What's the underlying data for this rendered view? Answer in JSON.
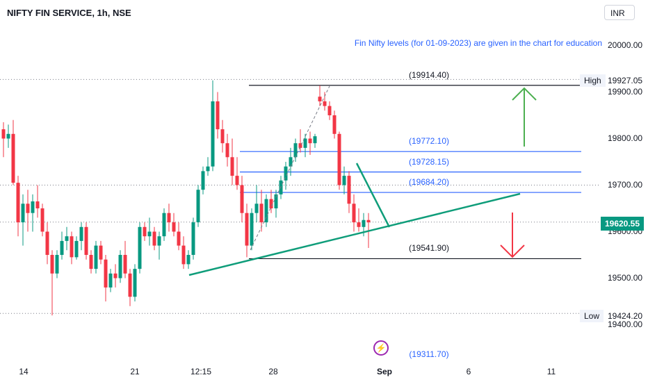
{
  "header": {
    "title": "NIFTY FIN SERVICE, 1h, NSE",
    "currency": "INR",
    "note": "Fin Nifty levels (for 01-09-2023) are given in the chart for education"
  },
  "colors": {
    "up": "#089981",
    "down": "#f23645",
    "blue_level": "#2962ff",
    "trendline": "#0f9d7a",
    "dotted": "#787b86"
  },
  "price_box": "19620.55",
  "high_label": {
    "tag": "High",
    "value": "19927.05"
  },
  "low_label": {
    "tag": "Low",
    "value": "19424.20"
  },
  "event_icon": "lightning-icon",
  "event_level": "(19311.70)",
  "chart_data": {
    "type": "candlestick",
    "title": "NIFTY FIN SERVICE, 1h, NSE",
    "y_range": [
      19300,
      20050
    ],
    "y_ticks": [
      "20000.00",
      "19900.00",
      "19800.00",
      "19700.00",
      "19600.00",
      "19500.00",
      "19400.00"
    ],
    "x_ticks": [
      "14",
      "21",
      "12:15",
      "28",
      "Sep",
      "6",
      "11"
    ],
    "levels": [
      {
        "label": "(19914.40)",
        "value": 19914.4,
        "color": "black"
      },
      {
        "label": "(19772.10)",
        "value": 19772.1,
        "color": "blue"
      },
      {
        "label": "(19728.15)",
        "value": 19728.15,
        "color": "blue"
      },
      {
        "label": "(19684.20)",
        "value": 19684.2,
        "color": "blue"
      },
      {
        "label": "(19541.90)",
        "value": 19541.9,
        "color": "black"
      }
    ],
    "dotted_lines": [
      19927.05,
      19700,
      19620.55,
      19424.2
    ],
    "candles": [
      [
        19820,
        19835,
        19760,
        19800
      ],
      [
        19800,
        19830,
        19780,
        19810
      ],
      [
        19810,
        19840,
        19700,
        19705
      ],
      [
        19705,
        19720,
        19590,
        19620
      ],
      [
        19620,
        19680,
        19570,
        19660
      ],
      [
        19660,
        19690,
        19600,
        19640
      ],
      [
        19640,
        19680,
        19600,
        19665
      ],
      [
        19665,
        19700,
        19630,
        19650
      ],
      [
        19650,
        19660,
        19590,
        19600
      ],
      [
        19600,
        19620,
        19530,
        19550
      ],
      [
        19550,
        19560,
        19420,
        19510
      ],
      [
        19510,
        19560,
        19500,
        19550
      ],
      [
        19550,
        19600,
        19540,
        19580
      ],
      [
        19580,
        19610,
        19560,
        19590
      ],
      [
        19590,
        19600,
        19530,
        19545
      ],
      [
        19545,
        19590,
        19540,
        19580
      ],
      [
        19580,
        19620,
        19560,
        19610
      ],
      [
        19610,
        19620,
        19540,
        19550
      ],
      [
        19550,
        19560,
        19510,
        19520
      ],
      [
        19520,
        19580,
        19510,
        19570
      ],
      [
        19570,
        19580,
        19530,
        19540
      ],
      [
        19540,
        19550,
        19450,
        19480
      ],
      [
        19480,
        19520,
        19470,
        19510
      ],
      [
        19510,
        19530,
        19480,
        19500
      ],
      [
        19500,
        19560,
        19490,
        19550
      ],
      [
        19550,
        19580,
        19500,
        19510
      ],
      [
        19510,
        19520,
        19440,
        19460
      ],
      [
        19460,
        19530,
        19450,
        19520
      ],
      [
        19520,
        19620,
        19510,
        19610
      ],
      [
        19610,
        19620,
        19580,
        19590
      ],
      [
        19590,
        19630,
        19570,
        19600
      ],
      [
        19600,
        19610,
        19560,
        19570
      ],
      [
        19570,
        19600,
        19540,
        19590
      ],
      [
        19590,
        19650,
        19580,
        19640
      ],
      [
        19640,
        19660,
        19600,
        19620
      ],
      [
        19620,
        19640,
        19590,
        19600
      ],
      [
        19600,
        19620,
        19560,
        19570
      ],
      [
        19570,
        19590,
        19520,
        19530
      ],
      [
        19530,
        19560,
        19520,
        19550
      ],
      [
        19550,
        19630,
        19540,
        19620
      ],
      [
        19620,
        19700,
        19610,
        19690
      ],
      [
        19690,
        19740,
        19680,
        19730
      ],
      [
        19730,
        19760,
        19720,
        19740
      ],
      [
        19740,
        19925,
        19730,
        19880
      ],
      [
        19880,
        19900,
        19800,
        19820
      ],
      [
        19820,
        19840,
        19770,
        19790
      ],
      [
        19790,
        19810,
        19740,
        19760
      ],
      [
        19760,
        19800,
        19700,
        19720
      ],
      [
        19720,
        19760,
        19690,
        19700
      ],
      [
        19700,
        19720,
        19620,
        19640
      ],
      [
        19640,
        19660,
        19545,
        19570
      ],
      [
        19570,
        19650,
        19560,
        19640
      ],
      [
        19640,
        19700,
        19620,
        19660
      ],
      [
        19660,
        19690,
        19600,
        19620
      ],
      [
        19620,
        19680,
        19610,
        19670
      ],
      [
        19670,
        19690,
        19640,
        19650
      ],
      [
        19650,
        19690,
        19630,
        19680
      ],
      [
        19680,
        19720,
        19670,
        19710
      ],
      [
        19710,
        19750,
        19690,
        19740
      ],
      [
        19740,
        19780,
        19720,
        19760
      ],
      [
        19760,
        19800,
        19750,
        19790
      ],
      [
        19790,
        19820,
        19770,
        19780
      ],
      [
        19780,
        19810,
        19760,
        19800
      ],
      [
        19800,
        19815,
        19765,
        19790
      ],
      [
        19790,
        19810,
        19780,
        19805
      ],
      [
        19890,
        19914,
        19870,
        19880
      ],
      [
        19880,
        19900,
        19860,
        19870
      ],
      [
        19870,
        19880,
        19840,
        19850
      ],
      [
        19850,
        19860,
        19800,
        19810
      ],
      [
        19810,
        19815,
        19690,
        19700
      ],
      [
        19700,
        19740,
        19680,
        19720
      ],
      [
        19720,
        19730,
        19640,
        19660
      ],
      [
        19660,
        19680,
        19600,
        19620
      ],
      [
        19620,
        19650,
        19600,
        19610
      ],
      [
        19610,
        19640,
        19590,
        19625
      ],
      [
        19625,
        19640,
        19565,
        19620
      ]
    ]
  }
}
